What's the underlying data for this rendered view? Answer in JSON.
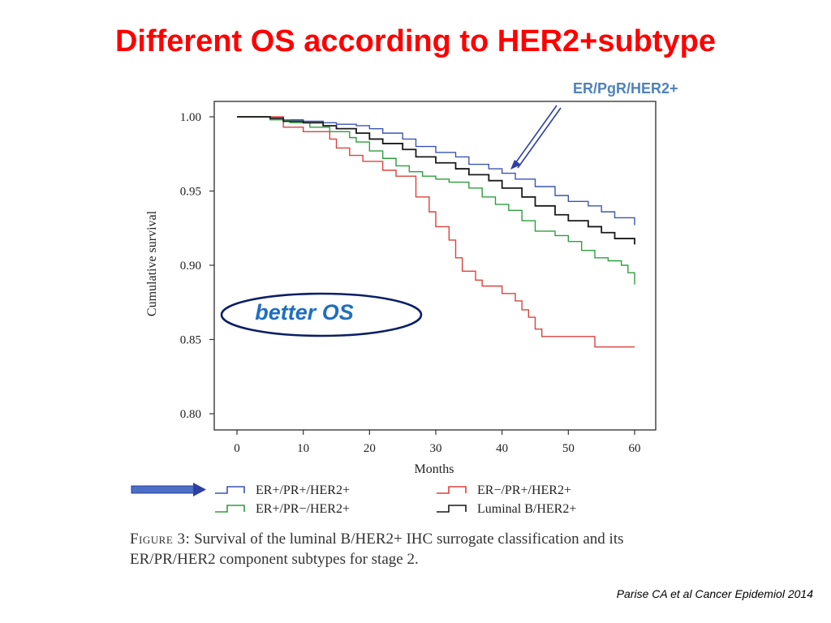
{
  "slide": {
    "title": "Different OS according to HER2+subtype",
    "callout_label": "ER/PgR/HER2+",
    "annotation": "better OS",
    "citation": "Parise CA et al Cancer Epidemiol 2014"
  },
  "caption": {
    "label": "Figure 3:",
    "text": "Survival of the luminal B/HER2+ IHC surrogate classification and its ER/PR/HER2 component subtypes for stage 2."
  },
  "colors": {
    "title": "#ff0000",
    "callout": "#4f81bd",
    "annotation_text": "#1f6fbf",
    "ellipse_stroke": "#0b1f66",
    "arrow": "#2e3fa0"
  },
  "chart_data": {
    "type": "line",
    "subtype": "kaplan-meier-step",
    "xlabel": "Months",
    "ylabel": "Cumulative survival",
    "xlim": [
      0,
      60
    ],
    "ylim": [
      0.8,
      1.0
    ],
    "xticks": [
      0,
      10,
      20,
      30,
      40,
      50,
      60
    ],
    "yticks": [
      0.8,
      0.85,
      0.9,
      0.95,
      1.0
    ],
    "ytick_labels": [
      "0.80",
      "0.85",
      "0.90",
      "0.95",
      "1.00"
    ],
    "legend_placement": "bottom",
    "grid": false,
    "series": [
      {
        "name": "ER+/PR+/HER2+",
        "color": "#3a55b4",
        "x": [
          0,
          5,
          7,
          10,
          13,
          15,
          18,
          20,
          22,
          25,
          27,
          30,
          33,
          35,
          38,
          40,
          42,
          45,
          48,
          50,
          53,
          55,
          57,
          60
        ],
        "y": [
          1.0,
          0.999,
          0.998,
          0.997,
          0.996,
          0.995,
          0.994,
          0.992,
          0.989,
          0.985,
          0.98,
          0.976,
          0.973,
          0.968,
          0.965,
          0.962,
          0.958,
          0.953,
          0.947,
          0.943,
          0.94,
          0.936,
          0.932,
          0.927
        ]
      },
      {
        "name": "ER−/PR+/HER2+",
        "color": "#d9433c",
        "x": [
          0,
          7,
          10,
          14,
          15,
          17,
          19,
          22,
          24,
          27,
          29,
          30,
          32,
          33,
          34,
          36,
          37,
          40,
          42,
          43,
          44,
          45,
          46,
          54,
          60
        ],
        "y": [
          1.0,
          0.993,
          0.99,
          0.985,
          0.979,
          0.974,
          0.97,
          0.964,
          0.96,
          0.946,
          0.936,
          0.926,
          0.917,
          0.905,
          0.896,
          0.89,
          0.886,
          0.881,
          0.876,
          0.87,
          0.865,
          0.857,
          0.852,
          0.845,
          0.845
        ]
      },
      {
        "name": "ER+/PR−/HER2+",
        "color": "#2e9e3e",
        "x": [
          0,
          5,
          8,
          11,
          14,
          17,
          18,
          20,
          22,
          24,
          26,
          28,
          30,
          32,
          35,
          37,
          39,
          41,
          43,
          45,
          48,
          50,
          52,
          54,
          56,
          58,
          59,
          60
        ],
        "y": [
          1.0,
          0.998,
          0.996,
          0.993,
          0.99,
          0.986,
          0.983,
          0.977,
          0.972,
          0.967,
          0.963,
          0.96,
          0.958,
          0.956,
          0.952,
          0.946,
          0.941,
          0.937,
          0.93,
          0.923,
          0.92,
          0.916,
          0.91,
          0.905,
          0.903,
          0.9,
          0.895,
          0.887
        ]
      },
      {
        "name": "Luminal B/HER2+",
        "color": "#1a1a1a",
        "x": [
          0,
          5,
          7,
          10,
          13,
          15,
          18,
          20,
          22,
          25,
          27,
          30,
          33,
          35,
          38,
          40,
          43,
          45,
          48,
          50,
          53,
          55,
          57,
          60
        ],
        "y": [
          1.0,
          0.999,
          0.997,
          0.996,
          0.994,
          0.992,
          0.989,
          0.985,
          0.982,
          0.978,
          0.973,
          0.969,
          0.965,
          0.961,
          0.957,
          0.952,
          0.946,
          0.94,
          0.934,
          0.93,
          0.926,
          0.922,
          0.918,
          0.914
        ]
      }
    ]
  }
}
